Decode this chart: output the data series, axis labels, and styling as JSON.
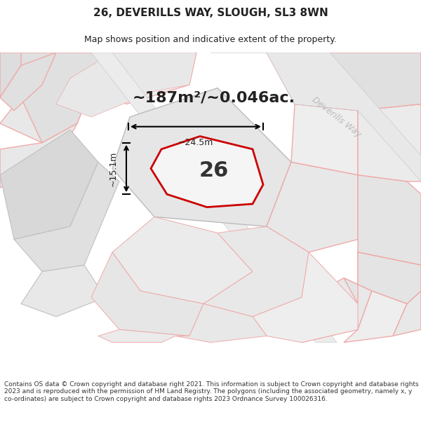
{
  "title": "26, DEVERILLS WAY, SLOUGH, SL3 8WN",
  "subtitle": "Map shows position and indicative extent of the property.",
  "area_label": "~187m²/~0.046ac.",
  "plot_number": "26",
  "width_label": "~24.5m",
  "height_label": "~15.1m",
  "footer": "Contains OS data © Crown copyright and database right 2021. This information is subject to Crown copyright and database rights 2023 and is reproduced with the permission of HM Land Registry. The polygons (including the associated geometry, namely x, y co-ordinates) are subject to Crown copyright and database rights 2023 Ordnance Survey 100026316.",
  "bg_color": "#ffffff",
  "map_bg": "#f5f5f5",
  "plot_fill": "#f0f0f0",
  "highlight_color": "#cc0000",
  "road_label_color": "#bbbbbb",
  "parcel_line_color": "#f0aaaa",
  "road_fill": "#e8e8e8",
  "title_fontsize": 11,
  "subtitle_fontsize": 9,
  "area_fontsize": 16,
  "number_fontsize": 22,
  "footer_fontsize": 6.5
}
